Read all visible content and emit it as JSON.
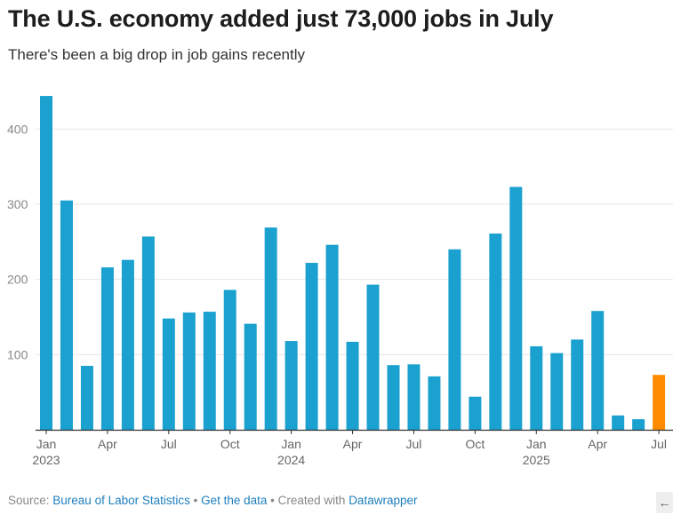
{
  "title": "The U.S. economy added just 73,000 jobs in July",
  "subtitle": "There's been a big drop in job gains recently",
  "footer": {
    "source_prefix": "Source: ",
    "source_link": "Bureau of Labor Statistics",
    "sep1": " • ",
    "data_link": "Get the data",
    "sep2": " • Created with ",
    "tool_link": "Datawrapper"
  },
  "corner_icon": "arrow-left-icon",
  "colors": {
    "bar": "#1ba1cf",
    "highlight": "#ff8c00",
    "grid": "#e6e6e6",
    "axis": "#333333",
    "tick": "#888888"
  },
  "chart_data": {
    "type": "bar",
    "title": "The U.S. economy added just 73,000 jobs in July",
    "subtitle": "There's been a big drop in job gains recently",
    "xlabel": "",
    "ylabel": "",
    "ylim": [
      0,
      450
    ],
    "yticks": [
      100,
      200,
      300,
      400
    ],
    "grid": true,
    "categories": [
      "Jan 2023",
      "Feb 2023",
      "Mar 2023",
      "Apr 2023",
      "May 2023",
      "Jun 2023",
      "Jul 2023",
      "Aug 2023",
      "Sep 2023",
      "Oct 2023",
      "Nov 2023",
      "Dec 2023",
      "Jan 2024",
      "Feb 2024",
      "Mar 2024",
      "Apr 2024",
      "May 2024",
      "Jun 2024",
      "Jul 2024",
      "Aug 2024",
      "Sep 2024",
      "Oct 2024",
      "Nov 2024",
      "Dec 2024",
      "Jan 2025",
      "Feb 2025",
      "Mar 2025",
      "Apr 2025",
      "May 2025",
      "Jun 2025",
      "Jul 2025"
    ],
    "values": [
      444,
      305,
      85,
      216,
      226,
      257,
      148,
      156,
      157,
      186,
      141,
      269,
      118,
      222,
      246,
      117,
      193,
      86,
      87,
      71,
      240,
      44,
      261,
      323,
      111,
      102,
      120,
      158,
      19,
      14,
      73
    ],
    "highlight_index": 30,
    "xticks": [
      {
        "index": 0,
        "label": "Jan",
        "year": "2023"
      },
      {
        "index": 3,
        "label": "Apr"
      },
      {
        "index": 6,
        "label": "Jul"
      },
      {
        "index": 9,
        "label": "Oct"
      },
      {
        "index": 12,
        "label": "Jan",
        "year": "2024"
      },
      {
        "index": 15,
        "label": "Apr"
      },
      {
        "index": 18,
        "label": "Jul"
      },
      {
        "index": 21,
        "label": "Oct"
      },
      {
        "index": 24,
        "label": "Jan",
        "year": "2025"
      },
      {
        "index": 27,
        "label": "Apr"
      },
      {
        "index": 30,
        "label": "Jul"
      }
    ]
  }
}
